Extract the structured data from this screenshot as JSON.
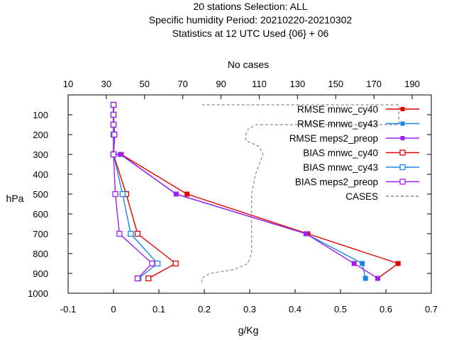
{
  "chart_data": {
    "type": "line",
    "title_lines": [
      "20 stations Selection: ALL",
      "Specific humidity  Period: 20210220-20210302",
      "Statistics at 12 UTC  Used {06} + 06"
    ],
    "xlabel": "g/Kg",
    "ylabel": "hPa",
    "x2label": "No cases",
    "xlim": [
      -0.1,
      0.7
    ],
    "ylim": [
      1000,
      0
    ],
    "x2lim": [
      10,
      200
    ],
    "xticks": [
      "-0.1",
      "0",
      "0.1",
      "0.2",
      "0.3",
      "0.4",
      "0.5",
      "0.6",
      "0.7"
    ],
    "yticks": [
      "100",
      "200",
      "300",
      "400",
      "500",
      "600",
      "700",
      "800",
      "900",
      "1000"
    ],
    "x2ticks": [
      "10",
      "30",
      "50",
      "70",
      "90",
      "110",
      "130",
      "150",
      "170",
      "190"
    ],
    "legend_position": "top-right",
    "series": [
      {
        "name": "RMSE mnwc_cy40",
        "color": "#e00000",
        "marker": "filled",
        "points": [
          [
            0.0,
            50
          ],
          [
            0.0,
            100
          ],
          [
            0.0,
            150
          ],
          [
            0.0,
            200
          ],
          [
            0.0,
            300
          ],
          [
            0.017,
            300
          ],
          [
            0.162,
            500
          ],
          [
            0.428,
            700
          ],
          [
            0.627,
            850
          ],
          [
            0.582,
            925
          ]
        ]
      },
      {
        "name": "RMSE mnwc_cy43",
        "color": "#1a86e6",
        "marker": "filled",
        "points": [
          [
            0.0,
            50
          ],
          [
            0.0,
            100
          ],
          [
            0.0,
            150
          ],
          [
            0.003,
            200
          ],
          [
            0.0,
            300
          ],
          [
            0.015,
            300
          ],
          [
            0.138,
            500
          ],
          [
            0.424,
            700
          ],
          [
            0.548,
            850
          ],
          [
            0.555,
            925
          ]
        ]
      },
      {
        "name": "RMSE meps2_preop",
        "color": "#a020f0",
        "marker": "filled",
        "points": [
          [
            0.0,
            50
          ],
          [
            0.0,
            100
          ],
          [
            0.001,
            150
          ],
          [
            0.003,
            200
          ],
          [
            0.0,
            300
          ],
          [
            0.016,
            300
          ],
          [
            0.138,
            500
          ],
          [
            0.424,
            700
          ],
          [
            0.53,
            850
          ],
          [
            0.582,
            925
          ]
        ]
      },
      {
        "name": "BIAS mnwc_cy40",
        "color": "#e00000",
        "marker": "open",
        "points": [
          [
            0.0,
            50
          ],
          [
            0.0,
            100
          ],
          [
            0.0,
            150
          ],
          [
            0.0,
            200
          ],
          [
            0.0,
            300
          ],
          [
            0.028,
            500
          ],
          [
            0.053,
            700
          ],
          [
            0.137,
            850
          ],
          [
            0.077,
            925
          ]
        ]
      },
      {
        "name": "BIAS mnwc_cy43",
        "color": "#1a86e6",
        "marker": "open",
        "points": [
          [
            0.0,
            50
          ],
          [
            0.0,
            100
          ],
          [
            0.0,
            150
          ],
          [
            0.0,
            200
          ],
          [
            0.0,
            300
          ],
          [
            0.02,
            500
          ],
          [
            0.038,
            700
          ],
          [
            0.097,
            850
          ],
          [
            0.055,
            925
          ]
        ]
      },
      {
        "name": "BIAS meps2_preop",
        "color": "#a020f0",
        "marker": "open",
        "points": [
          [
            0.0,
            50
          ],
          [
            0.0,
            100
          ],
          [
            0.0,
            150
          ],
          [
            0.002,
            200
          ],
          [
            0.0,
            300
          ],
          [
            0.004,
            500
          ],
          [
            0.013,
            700
          ],
          [
            0.085,
            850
          ],
          [
            0.053,
            925
          ]
        ]
      }
    ],
    "cases": {
      "name": "CASES",
      "color": "#888888",
      "style": "dashed",
      "points": [
        [
          80,
          50
        ],
        [
          183,
          50
        ],
        [
          183,
          150
        ],
        [
          108,
          150
        ],
        [
          104,
          175
        ],
        [
          103,
          200
        ],
        [
          103,
          230
        ],
        [
          110,
          260
        ],
        [
          112,
          300
        ],
        [
          108,
          400
        ],
        [
          106,
          500
        ],
        [
          106,
          700
        ],
        [
          106,
          800
        ],
        [
          104,
          850
        ],
        [
          97,
          880
        ],
        [
          84,
          900
        ],
        [
          80,
          925
        ],
        [
          80,
          950
        ]
      ]
    }
  }
}
